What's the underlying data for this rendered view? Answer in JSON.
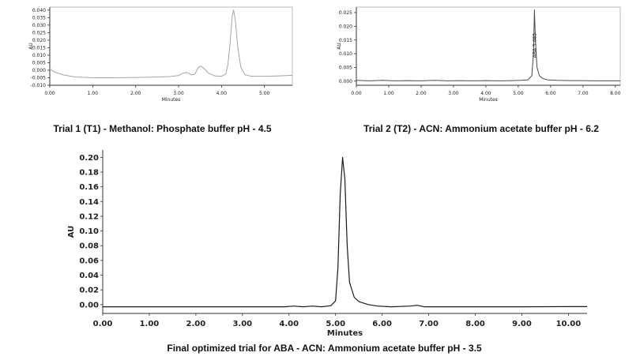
{
  "captions": {
    "trial1": "Trial 1 (T1) - Methanol: Phosphate buffer pH - 4.5",
    "trial2": "Trial 2 (T2) - ACN: Ammonium acetate buffer pH - 6.2",
    "final": "Final optimized trial for ABA - ACN: Ammonium acetate buffer pH - 3.5"
  },
  "chart_data": [
    {
      "id": "trial1",
      "type": "line",
      "title": "Trial 1 (T1) - Methanol: Phosphate buffer pH - 4.5",
      "xlabel": "Minutes",
      "ylabel": "AU",
      "xlim": [
        0,
        5.65
      ],
      "ylim": [
        -0.01,
        0.042
      ],
      "xticks": [
        "0.00",
        "1.00",
        "2.00",
        "3.00",
        "4.00",
        "5.00"
      ],
      "yticks": [
        "-0.010",
        "-0.005",
        "0.000",
        "0.005",
        "0.010",
        "0.015",
        "0.020",
        "0.025",
        "0.030",
        "0.035",
        "0.040"
      ],
      "grid": false,
      "legend": null,
      "line_color": "#a3a3a3",
      "points": [
        [
          0,
          0.001
        ],
        [
          0.1,
          -0.001
        ],
        [
          0.3,
          -0.003
        ],
        [
          0.6,
          -0.0045
        ],
        [
          1.0,
          -0.005
        ],
        [
          1.5,
          -0.005
        ],
        [
          2.0,
          -0.0048
        ],
        [
          2.5,
          -0.0045
        ],
        [
          2.8,
          -0.0042
        ],
        [
          3.0,
          -0.0035
        ],
        [
          3.1,
          -0.002
        ],
        [
          3.2,
          -0.0015
        ],
        [
          3.3,
          -0.003
        ],
        [
          3.38,
          -0.0025
        ],
        [
          3.45,
          0.0015
        ],
        [
          3.52,
          0.0028
        ],
        [
          3.6,
          0.001
        ],
        [
          3.7,
          -0.002
        ],
        [
          3.85,
          -0.0038
        ],
        [
          4.0,
          -0.004
        ],
        [
          4.1,
          -0.0025
        ],
        [
          4.15,
          0.004
        ],
        [
          4.2,
          0.018
        ],
        [
          4.25,
          0.036
        ],
        [
          4.28,
          0.04
        ],
        [
          4.32,
          0.034
        ],
        [
          4.38,
          0.015
        ],
        [
          4.45,
          0.002
        ],
        [
          4.55,
          -0.003
        ],
        [
          4.7,
          -0.004
        ],
        [
          5.0,
          -0.004
        ],
        [
          5.3,
          -0.0038
        ],
        [
          5.65,
          -0.0034
        ]
      ]
    },
    {
      "id": "trial2",
      "type": "line",
      "title": "Trial 2 (T2) - ACN: Ammonium acetate buffer pH - 6.2",
      "xlabel": "Minutes",
      "ylabel": "AU",
      "xlim": [
        0,
        8.15
      ],
      "ylim": [
        -0.0015,
        0.027
      ],
      "xticks": [
        "0.00",
        "1.00",
        "2.00",
        "3.00",
        "4.00",
        "5.00",
        "6.00",
        "7.00",
        "8.00"
      ],
      "yticks": [
        "0.000",
        "0.005",
        "0.010",
        "0.015",
        "0.020",
        "0.025"
      ],
      "grid": false,
      "legend": null,
      "line_color": "#4a4a4a",
      "annotation": {
        "text": "ABA 5.485",
        "x": 5.5,
        "y": 0.0085,
        "rotate": -90
      },
      "points": [
        [
          0,
          0.0003
        ],
        [
          0.4,
          0.0001
        ],
        [
          0.8,
          0.0003
        ],
        [
          1.2,
          0.0001
        ],
        [
          1.6,
          0.0002
        ],
        [
          2.0,
          0.0001
        ],
        [
          2.4,
          0.0003
        ],
        [
          2.8,
          0.0001
        ],
        [
          3.2,
          0.0002
        ],
        [
          3.6,
          0.0001
        ],
        [
          4.0,
          0.0002
        ],
        [
          4.4,
          0.0001
        ],
        [
          4.8,
          0.0002
        ],
        [
          5.1,
          0.0003
        ],
        [
          5.3,
          0.0005
        ],
        [
          5.42,
          0.002
        ],
        [
          5.47,
          0.01
        ],
        [
          5.5,
          0.026
        ],
        [
          5.53,
          0.015
        ],
        [
          5.58,
          0.005
        ],
        [
          5.65,
          0.002
        ],
        [
          5.75,
          0.001
        ],
        [
          5.9,
          0.0005
        ],
        [
          6.2,
          0.0003
        ],
        [
          6.6,
          0.0002
        ],
        [
          7.0,
          0.0002
        ],
        [
          7.5,
          0.0001
        ],
        [
          8.15,
          0.0001
        ]
      ]
    },
    {
      "id": "final",
      "type": "line",
      "title": "Final optimized trial for ABA - ACN: Ammonium acetate buffer pH - 3.5",
      "xlabel": "Minutes",
      "ylabel": "AU",
      "xlim": [
        0,
        10.4
      ],
      "ylim": [
        -0.012,
        0.21
      ],
      "xticks": [
        "0.00",
        "1.00",
        "2.00",
        "3.00",
        "4.00",
        "5.00",
        "6.00",
        "7.00",
        "8.00",
        "9.00",
        "10.00"
      ],
      "yticks": [
        "0.00",
        "0.02",
        "0.04",
        "0.06",
        "0.08",
        "0.10",
        "0.12",
        "0.14",
        "0.16",
        "0.18",
        "0.20"
      ],
      "grid": false,
      "legend": null,
      "line_color": "#1a1a1a",
      "points": [
        [
          0,
          -0.003
        ],
        [
          0.5,
          -0.003
        ],
        [
          1.0,
          -0.003
        ],
        [
          1.5,
          -0.003
        ],
        [
          2.0,
          -0.003
        ],
        [
          2.5,
          -0.003
        ],
        [
          3.0,
          -0.003
        ],
        [
          3.5,
          -0.003
        ],
        [
          3.9,
          -0.003
        ],
        [
          4.1,
          -0.002
        ],
        [
          4.3,
          -0.003
        ],
        [
          4.5,
          -0.002
        ],
        [
          4.7,
          -0.003
        ],
        [
          4.9,
          -0.0015
        ],
        [
          5.0,
          0.005
        ],
        [
          5.05,
          0.05
        ],
        [
          5.1,
          0.15
        ],
        [
          5.15,
          0.2
        ],
        [
          5.2,
          0.17
        ],
        [
          5.25,
          0.08
        ],
        [
          5.3,
          0.03
        ],
        [
          5.4,
          0.01
        ],
        [
          5.5,
          0.004
        ],
        [
          5.7,
          0.0
        ],
        [
          5.9,
          -0.002
        ],
        [
          6.2,
          -0.003
        ],
        [
          6.6,
          -0.002
        ],
        [
          6.75,
          -0.001
        ],
        [
          6.9,
          -0.003
        ],
        [
          7.5,
          -0.003
        ],
        [
          8.0,
          -0.003
        ],
        [
          9.0,
          -0.003
        ],
        [
          10.0,
          -0.0028
        ],
        [
          10.4,
          -0.0028
        ]
      ]
    }
  ]
}
